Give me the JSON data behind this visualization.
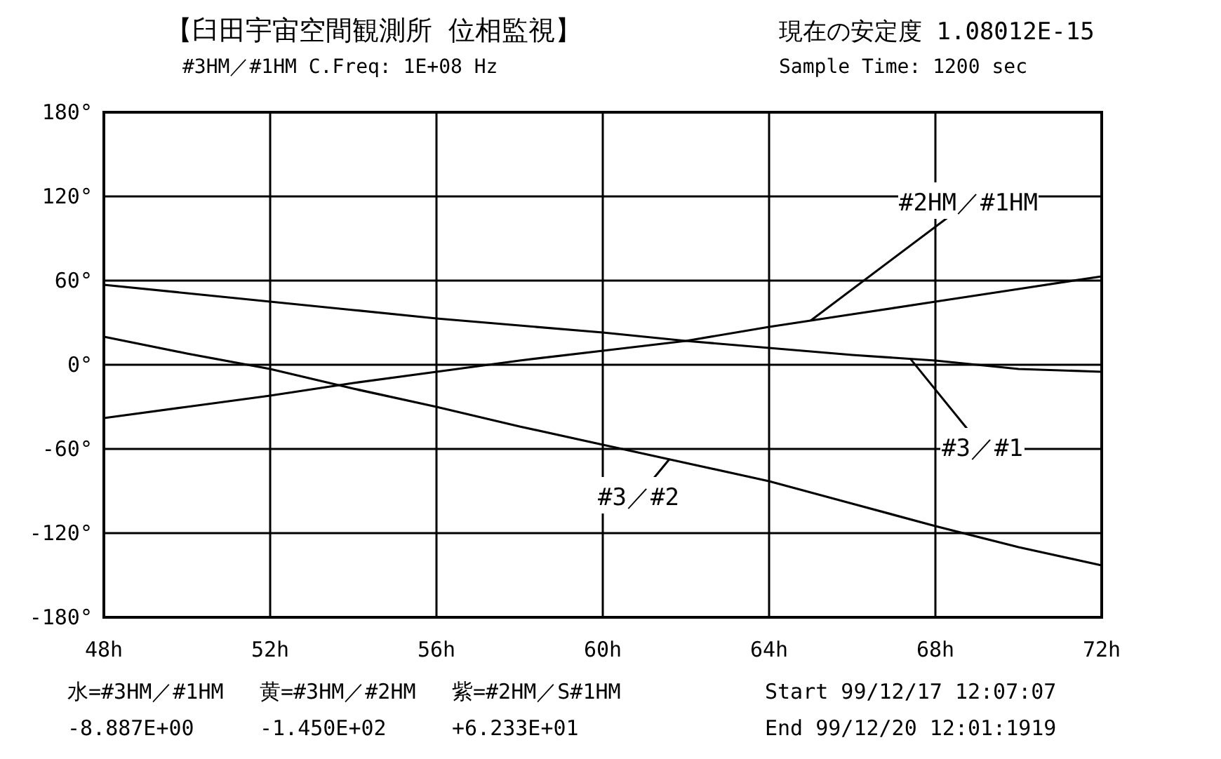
{
  "chart_data": {
    "type": "line",
    "title": "【臼田宇宙空間観測所 位相監視】",
    "subtitle": "#3HM／#1HM  C.Freq: 1E+08 Hz",
    "x": [
      48,
      50,
      52,
      54,
      56,
      58,
      60,
      62,
      64,
      66,
      68,
      70,
      72
    ],
    "series": [
      {
        "name": "#2HM／#1HM",
        "color": "#000000",
        "values": [
          -38,
          -30,
          -22,
          -13,
          -5,
          3,
          10,
          17,
          27,
          36,
          45,
          54,
          63
        ]
      },
      {
        "name": "#3／#1",
        "color": "#000000",
        "values": [
          57,
          51,
          45,
          39,
          33,
          28,
          23,
          17,
          12,
          7,
          3,
          -3,
          -5
        ]
      },
      {
        "name": "#3／#2",
        "color": "#000000",
        "values": [
          20,
          8,
          -3,
          -17,
          -30,
          -44,
          -57,
          -70,
          -83,
          -99,
          -115,
          -130,
          -143
        ]
      }
    ],
    "xlim": [
      48,
      72
    ],
    "ylim": [
      -180,
      180
    ],
    "xticks": [
      {
        "value": 48,
        "label": "48h"
      },
      {
        "value": 52,
        "label": "52h"
      },
      {
        "value": 56,
        "label": "56h"
      },
      {
        "value": 60,
        "label": "60h"
      },
      {
        "value": 64,
        "label": "64h"
      },
      {
        "value": 68,
        "label": "68h"
      },
      {
        "value": 72,
        "label": "72h"
      }
    ],
    "yticks": [
      {
        "value": 180,
        "label": "180°"
      },
      {
        "value": 120,
        "label": "120°"
      },
      {
        "value": 60,
        "label": "60°"
      },
      {
        "value": 0,
        "label": "0°"
      },
      {
        "value": -60,
        "label": "-60°"
      },
      {
        "value": -120,
        "label": "-120°"
      },
      {
        "value": -180,
        "label": "-180°"
      }
    ],
    "grid": true,
    "marker": "none",
    "line_style": "solid",
    "annotations": [
      "現在の安定度  1.08012E-15",
      "Sample Time:  1200 sec",
      "水=#3HM／#1HM",
      "黄=#3HM／#2HM",
      "紫=#2HM／S#1HM",
      "Start 99/12/17 12:07:07",
      "-8.887E+00",
      "-1.450E+02",
      "+6.233E+01",
      "End 99/12/20 12:01:1919"
    ]
  }
}
